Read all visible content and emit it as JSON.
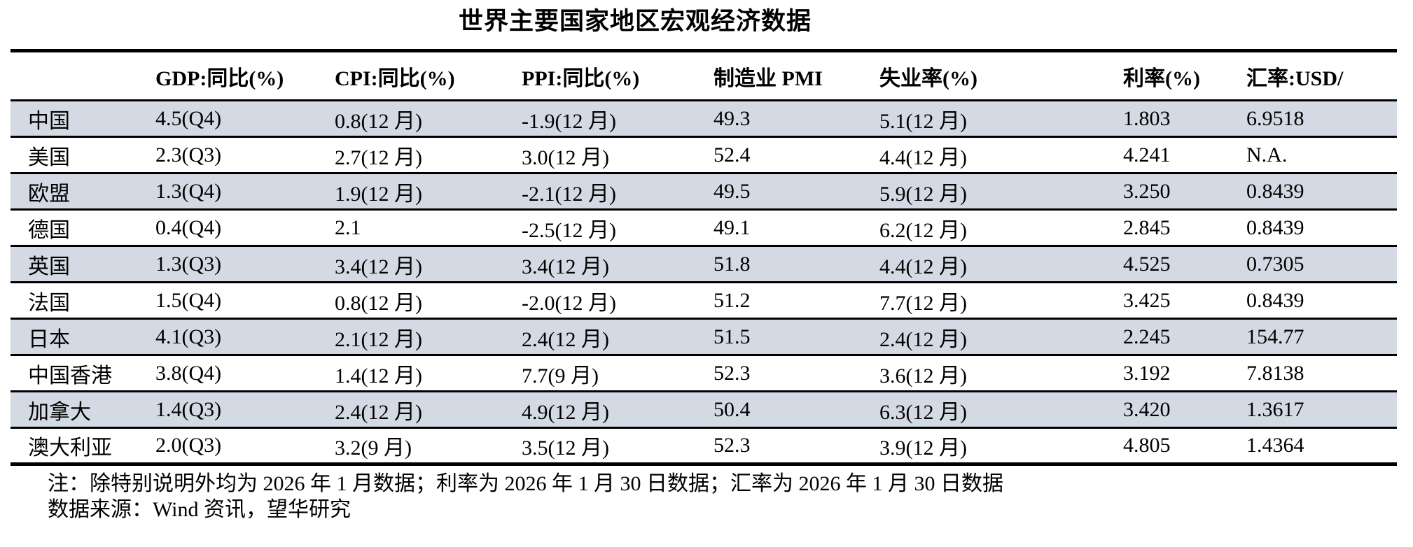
{
  "title": "世界主要国家地区宏观经济数据",
  "table": {
    "columns": [
      "",
      "GDP:同比(%)",
      "CPI:同比(%)",
      "PPI:同比(%)",
      "制造业 PMI",
      "失业率(%)",
      "利率(%)",
      "汇率:USD/"
    ],
    "rows": [
      {
        "region": "中国",
        "gdp": "4.5(Q4)",
        "cpi": "0.8(12 月)",
        "ppi": "-1.9(12 月)",
        "pmi": "49.3",
        "unemployment": "5.1(12 月)",
        "rate": "1.803",
        "fx": "6.9518",
        "shaded": true
      },
      {
        "region": "美国",
        "gdp": "2.3(Q3)",
        "cpi": "2.7(12 月)",
        "ppi": "3.0(12 月)",
        "pmi": "52.4",
        "unemployment": "4.4(12 月)",
        "rate": "4.241",
        "fx": "N.A.",
        "shaded": false
      },
      {
        "region": "欧盟",
        "gdp": "1.3(Q4)",
        "cpi": "1.9(12 月)",
        "ppi": "-2.1(12 月)",
        "pmi": "49.5",
        "unemployment": "5.9(12 月)",
        "rate": "3.250",
        "fx": "0.8439",
        "shaded": true
      },
      {
        "region": "德国",
        "gdp": "0.4(Q4)",
        "cpi": "2.1",
        "ppi": "-2.5(12 月)",
        "pmi": "49.1",
        "unemployment": "6.2(12 月)",
        "rate": "2.845",
        "fx": "0.8439",
        "shaded": false
      },
      {
        "region": "英国",
        "gdp": "1.3(Q3)",
        "cpi": "3.4(12 月)",
        "ppi": "3.4(12 月)",
        "pmi": "51.8",
        "unemployment": "4.4(12 月)",
        "rate": "4.525",
        "fx": "0.7305",
        "shaded": true
      },
      {
        "region": "法国",
        "gdp": "1.5(Q4)",
        "cpi": "0.8(12 月)",
        "ppi": "-2.0(12 月)",
        "pmi": "51.2",
        "unemployment": "7.7(12 月)",
        "rate": "3.425",
        "fx": "0.8439",
        "shaded": false
      },
      {
        "region": "日本",
        "gdp": "4.1(Q3)",
        "cpi": "2.1(12 月)",
        "ppi": "2.4(12 月)",
        "pmi": "51.5",
        "unemployment": "2.4(12 月)",
        "rate": "2.245",
        "fx": "154.77",
        "shaded": true
      },
      {
        "region": "中国香港",
        "gdp": "3.8(Q4)",
        "cpi": "1.4(12 月)",
        "ppi": "7.7(9 月)",
        "pmi": "52.3",
        "unemployment": "3.6(12 月)",
        "rate": "3.192",
        "fx": "7.8138",
        "shaded": false
      },
      {
        "region": "加拿大",
        "gdp": "1.4(Q3)",
        "cpi": "2.4(12 月)",
        "ppi": "4.9(12 月)",
        "pmi": "50.4",
        "unemployment": "6.3(12 月)",
        "rate": "3.420",
        "fx": "1.3617",
        "shaded": true
      },
      {
        "region": "澳大利亚",
        "gdp": "2.0(Q3)",
        "cpi": "3.2(9 月)",
        "ppi": "3.5(12 月)",
        "pmi": "52.3",
        "unemployment": "3.9(12 月)",
        "rate": "4.805",
        "fx": "1.4364",
        "shaded": false
      }
    ]
  },
  "notes": [
    "注：除特别说明外均为 2026 年 1 月数据；利率为 2026 年 1 月 30 日数据；汇率为 2026 年 1 月 30 日数据",
    "数据来源：Wind 资讯，望华研究"
  ],
  "colors": {
    "shaded_row": "#d3dae3",
    "rule": "#000000",
    "text": "#000000",
    "background": "#ffffff"
  }
}
